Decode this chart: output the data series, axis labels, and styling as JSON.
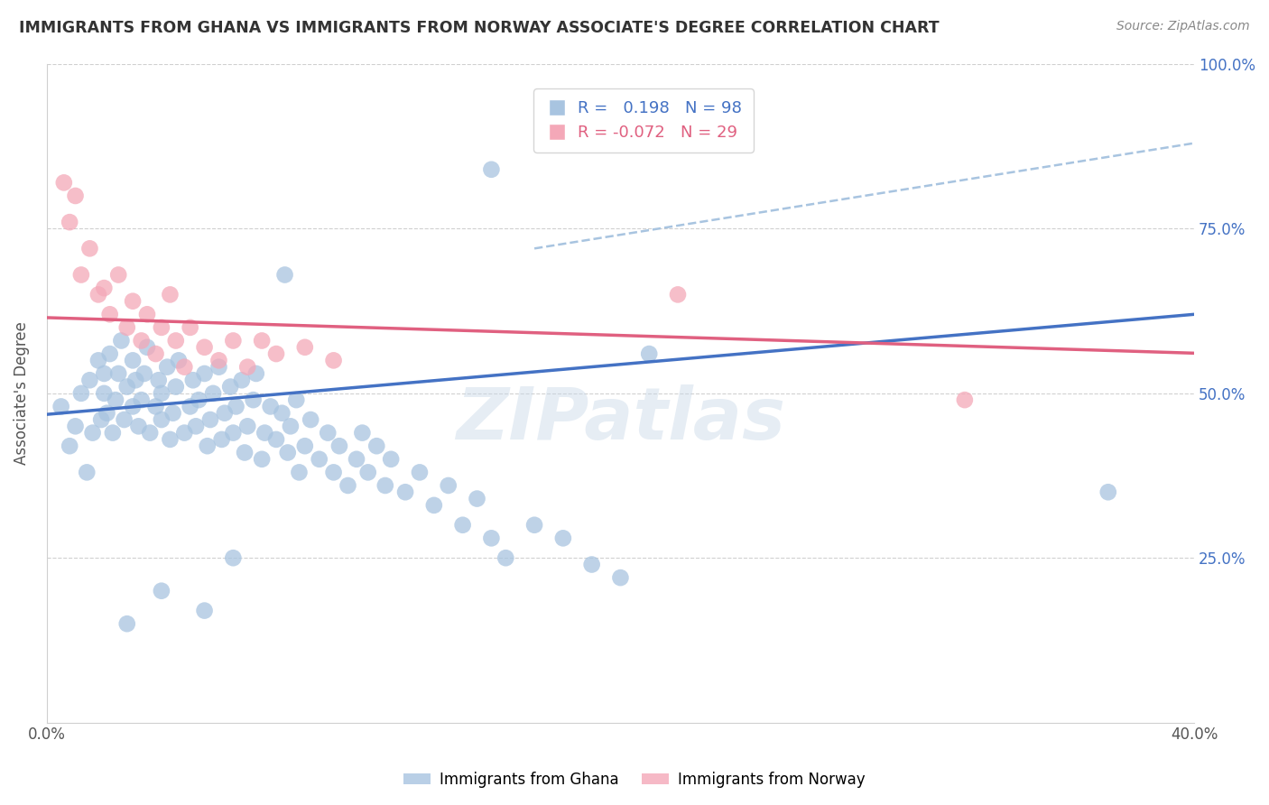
{
  "title": "IMMIGRANTS FROM GHANA VS IMMIGRANTS FROM NORWAY ASSOCIATE'S DEGREE CORRELATION CHART",
  "source": "Source: ZipAtlas.com",
  "ylabel": "Associate's Degree",
  "xlim": [
    0.0,
    0.4
  ],
  "ylim": [
    0.0,
    1.0
  ],
  "ghana_R": 0.198,
  "ghana_N": 98,
  "norway_R": -0.072,
  "norway_N": 29,
  "ghana_color": "#a8c4e0",
  "norway_color": "#f4a8b8",
  "ghana_line_color": "#4472c4",
  "norway_line_color": "#e06080",
  "ghana_dash_color": "#a8c4e0",
  "watermark": "ZIPatlas",
  "ghana_x": [
    0.005,
    0.008,
    0.01,
    0.012,
    0.014,
    0.015,
    0.016,
    0.018,
    0.019,
    0.02,
    0.02,
    0.021,
    0.022,
    0.023,
    0.024,
    0.025,
    0.026,
    0.027,
    0.028,
    0.03,
    0.03,
    0.031,
    0.032,
    0.033,
    0.034,
    0.035,
    0.036,
    0.038,
    0.039,
    0.04,
    0.04,
    0.042,
    0.043,
    0.044,
    0.045,
    0.046,
    0.048,
    0.05,
    0.051,
    0.052,
    0.053,
    0.055,
    0.056,
    0.057,
    0.058,
    0.06,
    0.061,
    0.062,
    0.064,
    0.065,
    0.066,
    0.068,
    0.069,
    0.07,
    0.072,
    0.073,
    0.075,
    0.076,
    0.078,
    0.08,
    0.082,
    0.084,
    0.085,
    0.087,
    0.088,
    0.09,
    0.092,
    0.095,
    0.098,
    0.1,
    0.102,
    0.105,
    0.108,
    0.11,
    0.112,
    0.115,
    0.118,
    0.12,
    0.125,
    0.13,
    0.135,
    0.14,
    0.145,
    0.15,
    0.155,
    0.16,
    0.17,
    0.18,
    0.19,
    0.2,
    0.155,
    0.083,
    0.21,
    0.37,
    0.065,
    0.028,
    0.04,
    0.055
  ],
  "ghana_y": [
    0.48,
    0.42,
    0.45,
    0.5,
    0.38,
    0.52,
    0.44,
    0.55,
    0.46,
    0.5,
    0.53,
    0.47,
    0.56,
    0.44,
    0.49,
    0.53,
    0.58,
    0.46,
    0.51,
    0.55,
    0.48,
    0.52,
    0.45,
    0.49,
    0.53,
    0.57,
    0.44,
    0.48,
    0.52,
    0.46,
    0.5,
    0.54,
    0.43,
    0.47,
    0.51,
    0.55,
    0.44,
    0.48,
    0.52,
    0.45,
    0.49,
    0.53,
    0.42,
    0.46,
    0.5,
    0.54,
    0.43,
    0.47,
    0.51,
    0.44,
    0.48,
    0.52,
    0.41,
    0.45,
    0.49,
    0.53,
    0.4,
    0.44,
    0.48,
    0.43,
    0.47,
    0.41,
    0.45,
    0.49,
    0.38,
    0.42,
    0.46,
    0.4,
    0.44,
    0.38,
    0.42,
    0.36,
    0.4,
    0.44,
    0.38,
    0.42,
    0.36,
    0.4,
    0.35,
    0.38,
    0.33,
    0.36,
    0.3,
    0.34,
    0.28,
    0.25,
    0.3,
    0.28,
    0.24,
    0.22,
    0.84,
    0.68,
    0.56,
    0.35,
    0.25,
    0.15,
    0.2,
    0.17
  ],
  "norway_x": [
    0.006,
    0.008,
    0.01,
    0.012,
    0.015,
    0.018,
    0.02,
    0.022,
    0.025,
    0.028,
    0.03,
    0.033,
    0.035,
    0.038,
    0.04,
    0.043,
    0.045,
    0.048,
    0.05,
    0.055,
    0.06,
    0.065,
    0.07,
    0.075,
    0.08,
    0.09,
    0.1,
    0.22,
    0.32
  ],
  "norway_y": [
    0.82,
    0.76,
    0.8,
    0.68,
    0.72,
    0.65,
    0.66,
    0.62,
    0.68,
    0.6,
    0.64,
    0.58,
    0.62,
    0.56,
    0.6,
    0.65,
    0.58,
    0.54,
    0.6,
    0.57,
    0.55,
    0.58,
    0.54,
    0.58,
    0.56,
    0.57,
    0.55,
    0.65,
    0.49
  ],
  "dash_line_x": [
    0.18,
    0.4
  ],
  "dash_line_y": [
    0.72,
    0.88
  ]
}
